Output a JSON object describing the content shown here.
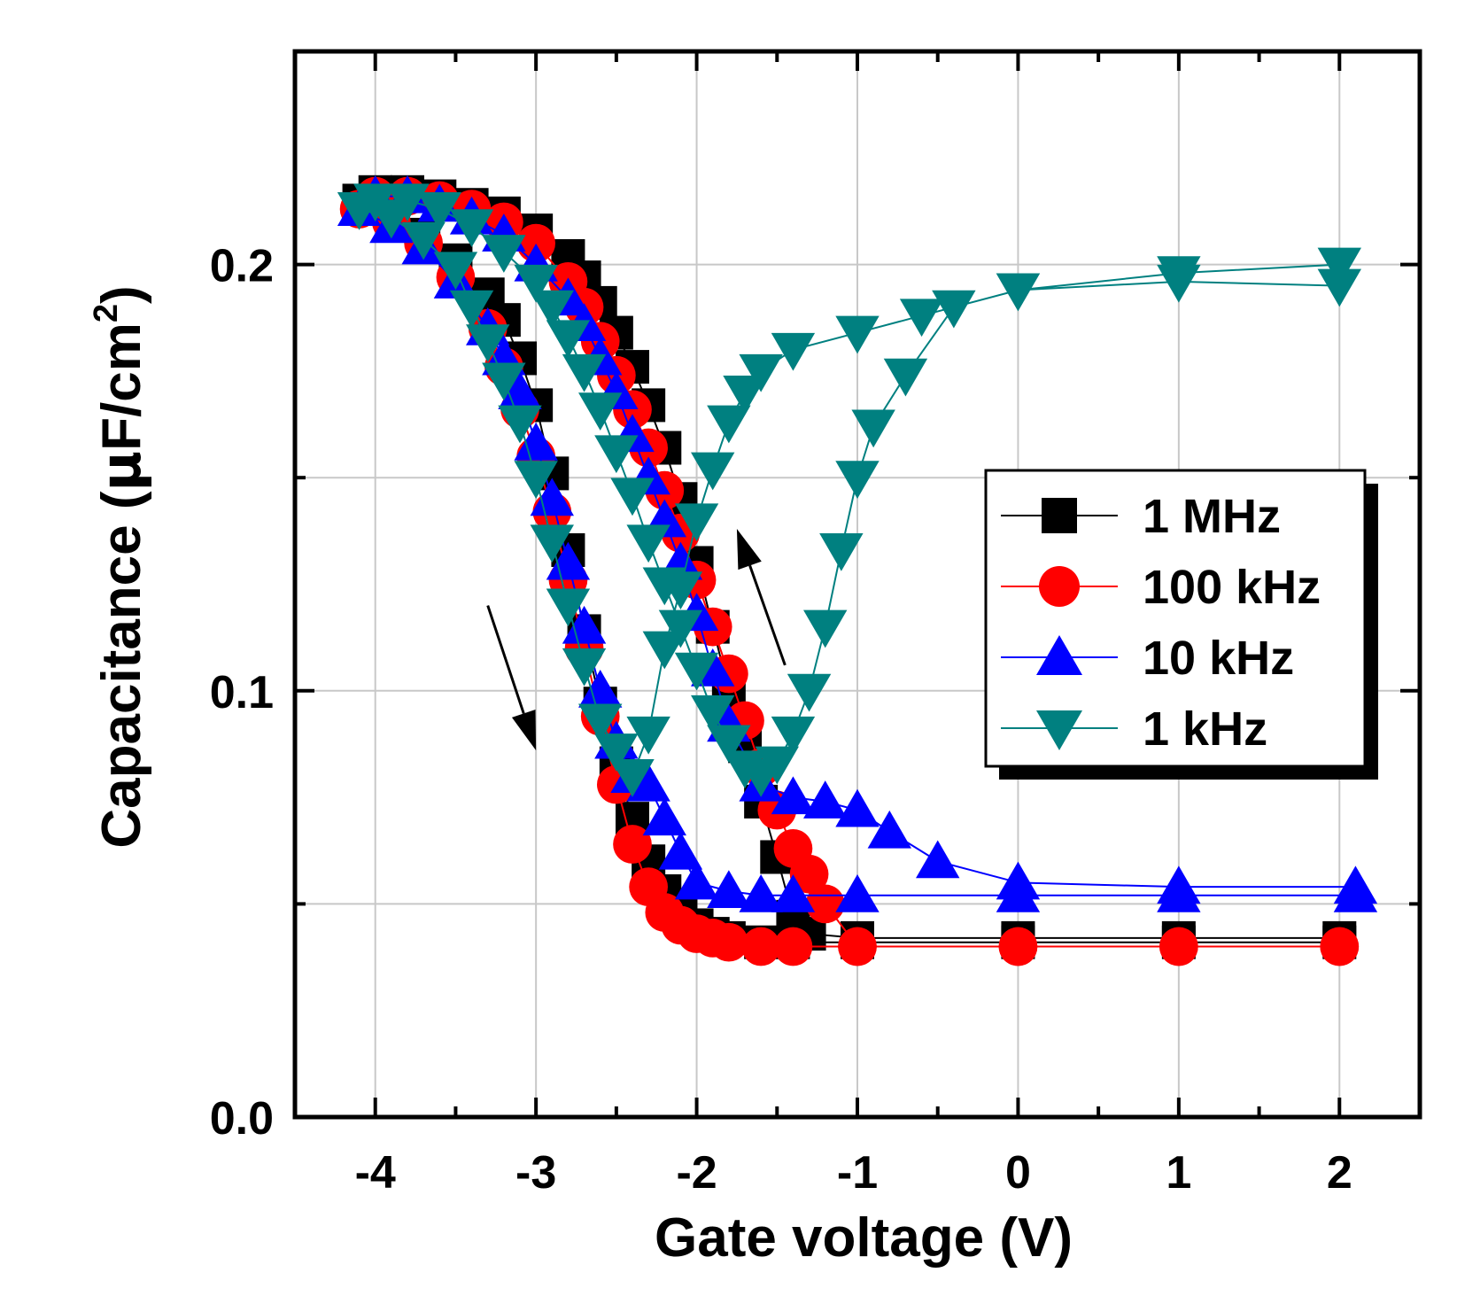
{
  "chart_data": {
    "type": "scatter",
    "xlabel": "Gate voltage (V)",
    "ylabel": {
      "main": "Capacitance (",
      "mu": "μ",
      "unit": "F/cm",
      "sup": "2",
      "close": ")"
    },
    "xlim": [
      -4.5,
      2.5
    ],
    "ylim": [
      0.0,
      0.25
    ],
    "x_ticks": [
      -4,
      -3,
      -2,
      -1,
      0,
      1,
      2
    ],
    "x_tick_labels": [
      "-4",
      "-3",
      "-2",
      "-1",
      "0",
      "1",
      "2"
    ],
    "y_ticks": [
      0.0,
      0.1,
      0.2
    ],
    "y_tick_labels": [
      "0.0",
      "0.1",
      "0.2"
    ],
    "y_minor_ticks": [
      0.05,
      0.15
    ],
    "grid": true,
    "legend": "center-right",
    "arrows": [
      {
        "direction": "down",
        "from": [
          -3.3,
          0.12
        ],
        "to": [
          -3.0,
          0.086
        ]
      },
      {
        "direction": "up",
        "from": [
          -1.45,
          0.106
        ],
        "to": [
          -1.75,
          0.138
        ]
      }
    ],
    "series": [
      {
        "name": "1 MHz",
        "color": "#000000",
        "marker": "square",
        "x": [
          -4.1,
          -3.9,
          -3.7,
          -3.5,
          -3.3,
          -3.2,
          -3.1,
          -3.0,
          -2.9,
          -2.8,
          -2.7,
          -2.6,
          -2.5,
          -2.4,
          -2.3,
          -2.2,
          -2.1,
          -2.0,
          -1.9,
          -1.8,
          -1.6,
          -1.4,
          -1.0,
          0.0,
          1.0,
          2.0,
          2.0,
          1.0,
          0.0,
          -1.0,
          -1.3,
          -1.4,
          -1.5,
          -1.6,
          -1.7,
          -1.8,
          -1.9,
          -2.0,
          -2.1,
          -2.2,
          -2.3,
          -2.4,
          -2.5,
          -2.6,
          -2.7,
          -2.8,
          -3.0,
          -3.2,
          -3.4,
          -3.6,
          -3.8,
          -4.0
        ],
        "y": [
          0.215,
          0.212,
          0.207,
          0.201,
          0.193,
          0.187,
          0.178,
          0.167,
          0.151,
          0.133,
          0.114,
          0.097,
          0.083,
          0.07,
          0.06,
          0.053,
          0.048,
          0.045,
          0.043,
          0.042,
          0.041,
          0.041,
          0.041,
          0.041,
          0.041,
          0.041,
          0.042,
          0.042,
          0.042,
          0.042,
          0.043,
          0.047,
          0.061,
          0.074,
          0.087,
          0.1,
          0.115,
          0.13,
          0.145,
          0.157,
          0.167,
          0.176,
          0.184,
          0.191,
          0.197,
          0.202,
          0.208,
          0.212,
          0.214,
          0.216,
          0.217,
          0.217
        ]
      },
      {
        "name": "100 kHz",
        "color": "#ff0000",
        "marker": "circle",
        "x": [
          -4.1,
          -3.9,
          -3.7,
          -3.5,
          -3.3,
          -3.2,
          -3.1,
          -3.0,
          -2.9,
          -2.8,
          -2.7,
          -2.6,
          -2.5,
          -2.4,
          -2.3,
          -2.2,
          -2.1,
          -2.0,
          -1.9,
          -1.8,
          -1.6,
          -1.4,
          -1.0,
          0.0,
          1.0,
          2.0,
          2.0,
          1.0,
          0.0,
          -1.0,
          -1.2,
          -1.3,
          -1.4,
          -1.5,
          -1.6,
          -1.7,
          -1.8,
          -1.9,
          -2.0,
          -2.1,
          -2.2,
          -2.3,
          -2.4,
          -2.5,
          -2.6,
          -2.7,
          -2.8,
          -3.0,
          -3.2,
          -3.4,
          -3.6,
          -3.8,
          -4.0
        ],
        "y": [
          0.213,
          0.21,
          0.205,
          0.197,
          0.185,
          0.176,
          0.166,
          0.155,
          0.142,
          0.126,
          0.11,
          0.094,
          0.078,
          0.064,
          0.054,
          0.048,
          0.045,
          0.043,
          0.042,
          0.041,
          0.04,
          0.04,
          0.04,
          0.04,
          0.04,
          0.04,
          0.04,
          0.04,
          0.04,
          0.04,
          0.05,
          0.057,
          0.063,
          0.072,
          0.082,
          0.093,
          0.104,
          0.115,
          0.126,
          0.137,
          0.147,
          0.157,
          0.166,
          0.174,
          0.182,
          0.19,
          0.196,
          0.205,
          0.21,
          0.213,
          0.215,
          0.216,
          0.216
        ]
      },
      {
        "name": "10 kHz",
        "color": "#0000ff",
        "marker": "triangle-up",
        "x": [
          -4.1,
          -3.9,
          -3.7,
          -3.5,
          -3.3,
          -3.2,
          -3.1,
          -3.0,
          -2.9,
          -2.8,
          -2.7,
          -2.6,
          -2.5,
          -2.4,
          -2.3,
          -2.2,
          -2.1,
          -2.0,
          -1.8,
          -1.6,
          -1.4,
          -1.0,
          0.0,
          1.0,
          2.1,
          2.1,
          1.0,
          0.0,
          -0.5,
          -0.8,
          -1.0,
          -1.2,
          -1.4,
          -1.6,
          -1.8,
          -1.9,
          -2.0,
          -2.1,
          -2.2,
          -2.3,
          -2.4,
          -2.5,
          -2.6,
          -2.7,
          -2.8,
          -3.0,
          -3.2,
          -3.4,
          -3.6,
          -3.8,
          -4.0
        ],
        "y": [
          0.213,
          0.209,
          0.204,
          0.196,
          0.185,
          0.178,
          0.17,
          0.158,
          0.145,
          0.13,
          0.115,
          0.1,
          0.088,
          0.08,
          0.078,
          0.07,
          0.062,
          0.055,
          0.053,
          0.052,
          0.052,
          0.052,
          0.052,
          0.052,
          0.052,
          0.054,
          0.054,
          0.055,
          0.06,
          0.067,
          0.072,
          0.074,
          0.075,
          0.078,
          0.092,
          0.105,
          0.118,
          0.13,
          0.14,
          0.15,
          0.16,
          0.17,
          0.178,
          0.186,
          0.192,
          0.2,
          0.207,
          0.211,
          0.214,
          0.216,
          0.216
        ]
      },
      {
        "name": "1 kHz",
        "color": "#008080",
        "marker": "triangle-down",
        "x": [
          -4.1,
          -3.9,
          -3.7,
          -3.5,
          -3.4,
          -3.3,
          -3.2,
          -3.1,
          -3.0,
          -2.9,
          -2.8,
          -2.7,
          -2.6,
          -2.5,
          -2.4,
          -2.3,
          -2.2,
          -2.1,
          -2.0,
          -1.9,
          -1.8,
          -1.7,
          -1.6,
          -1.4,
          -1.0,
          -0.6,
          0.0,
          1.0,
          2.0,
          2.0,
          1.0,
          0.0,
          -0.4,
          -0.7,
          -0.9,
          -1.0,
          -1.1,
          -1.2,
          -1.3,
          -1.4,
          -1.5,
          -1.6,
          -1.7,
          -1.8,
          -1.9,
          -2.0,
          -2.1,
          -2.2,
          -2.3,
          -2.4,
          -2.5,
          -2.6,
          -2.7,
          -2.8,
          -2.9,
          -3.0,
          -3.2,
          -3.4,
          -3.6,
          -3.8,
          -4.0
        ],
        "y": [
          0.213,
          0.211,
          0.206,
          0.199,
          0.19,
          0.182,
          0.173,
          0.163,
          0.15,
          0.135,
          0.12,
          0.106,
          0.093,
          0.086,
          0.08,
          0.09,
          0.11,
          0.124,
          0.14,
          0.152,
          0.163,
          0.17,
          0.175,
          0.18,
          0.184,
          0.188,
          0.194,
          0.198,
          0.2,
          0.195,
          0.196,
          0.194,
          0.19,
          0.174,
          0.162,
          0.15,
          0.133,
          0.115,
          0.1,
          0.09,
          0.083,
          0.08,
          0.082,
          0.088,
          0.095,
          0.105,
          0.115,
          0.125,
          0.135,
          0.146,
          0.156,
          0.166,
          0.175,
          0.183,
          0.19,
          0.196,
          0.203,
          0.209,
          0.213,
          0.215,
          0.215
        ]
      }
    ]
  }
}
